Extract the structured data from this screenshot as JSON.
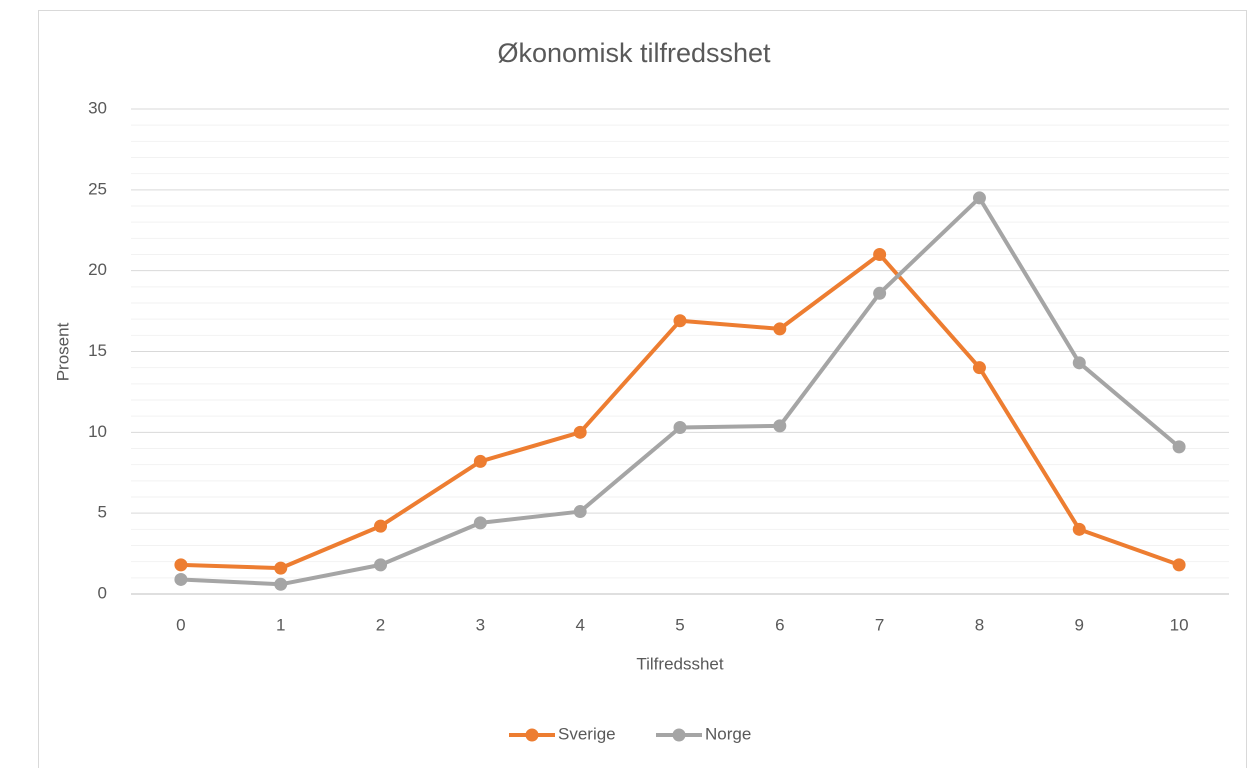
{
  "chart_data": {
    "type": "line",
    "title": "Økonomisk tilfredsshet",
    "x_label": "Tilfredsshet",
    "y_label": "Prosent",
    "categories": [
      "0",
      "1",
      "2",
      "3",
      "4",
      "5",
      "6",
      "7",
      "8",
      "9",
      "10"
    ],
    "series": [
      {
        "name": "Sverige",
        "color": "#ed7d31",
        "values": [
          1.8,
          1.6,
          4.2,
          8.2,
          10.0,
          16.9,
          16.4,
          21.0,
          14.0,
          4.0,
          1.8
        ]
      },
      {
        "name": "Norge",
        "color": "#a5a5a5",
        "values": [
          0.9,
          0.6,
          1.8,
          4.4,
          5.1,
          10.3,
          10.4,
          18.6,
          24.5,
          14.3,
          9.1
        ]
      }
    ],
    "ylim": [
      0,
      30
    ],
    "yticks": [
      0,
      5,
      10,
      15,
      20,
      25,
      30
    ],
    "minor_yticks": [
      1,
      2,
      3,
      4,
      6,
      7,
      8,
      9,
      11,
      12,
      13,
      14,
      16,
      17,
      18,
      19,
      21,
      22,
      23,
      24,
      26,
      27,
      28,
      29
    ],
    "grid": true,
    "legend": "bottom"
  }
}
